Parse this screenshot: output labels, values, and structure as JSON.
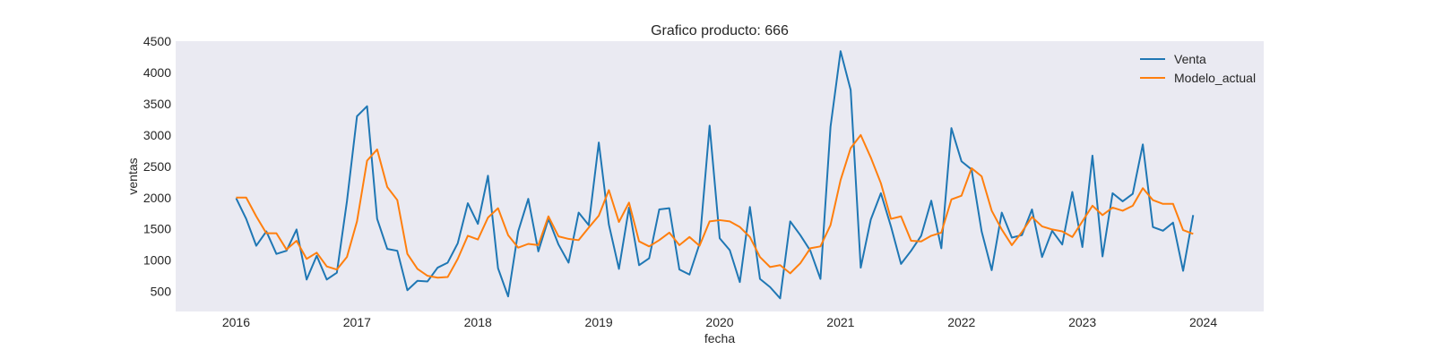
{
  "chart_data": {
    "type": "line",
    "title": "Grafico producto: 666",
    "xlabel": "fecha",
    "ylabel": "ventas",
    "x_start": "2016-01",
    "x_ticks": [
      "2016",
      "2017",
      "2018",
      "2019",
      "2020",
      "2021",
      "2022",
      "2023",
      "2024"
    ],
    "y_ticks": [
      500,
      1000,
      1500,
      2000,
      2500,
      3000,
      3500,
      4000,
      4500
    ],
    "xlim": [
      "2015-07",
      "2024-07"
    ],
    "ylim": [
      180,
      4500
    ],
    "grid": false,
    "legend_position": "top-right",
    "series": [
      {
        "name": "Venta",
        "color": "#1f77b4",
        "values": [
          1990,
          1660,
          1230,
          1460,
          1100,
          1150,
          1490,
          690,
          1070,
          690,
          800,
          1940,
          3300,
          3460,
          1660,
          1180,
          1150,
          520,
          670,
          660,
          880,
          960,
          1270,
          1910,
          1580,
          2350,
          870,
          420,
          1460,
          1980,
          1140,
          1660,
          1250,
          960,
          1760,
          1560,
          2880,
          1570,
          860,
          1840,
          920,
          1030,
          1810,
          1830,
          850,
          770,
          1260,
          3150,
          1350,
          1160,
          650,
          1850,
          700,
          570,
          390,
          1620,
          1400,
          1150,
          700,
          3130,
          4340,
          3720,
          880,
          1650,
          2070,
          1540,
          940,
          1150,
          1390,
          1950,
          1190,
          3110,
          2580,
          2450,
          1460,
          840,
          1760,
          1360,
          1400,
          1810,
          1050,
          1470,
          1250,
          2090,
          1210,
          2670,
          1060,
          2070,
          1940,
          2060,
          2850,
          1530,
          1470,
          1600,
          830,
          1720
        ]
      },
      {
        "name": "Modelo_actual",
        "color": "#ff7f0e",
        "values": [
          2000,
          2000,
          1700,
          1430,
          1430,
          1170,
          1310,
          1020,
          1120,
          900,
          850,
          1050,
          1620,
          2590,
          2770,
          2170,
          1960,
          1100,
          860,
          750,
          720,
          730,
          1020,
          1390,
          1330,
          1680,
          1830,
          1400,
          1200,
          1260,
          1240,
          1700,
          1380,
          1340,
          1320,
          1520,
          1710,
          2120,
          1610,
          1920,
          1300,
          1220,
          1320,
          1440,
          1240,
          1370,
          1230,
          1620,
          1640,
          1620,
          1530,
          1370,
          1050,
          890,
          920,
          790,
          950,
          1190,
          1220,
          1560,
          2280,
          2790,
          3000,
          2640,
          2230,
          1660,
          1700,
          1310,
          1300,
          1390,
          1440,
          1970,
          2030,
          2470,
          2340,
          1790,
          1490,
          1240,
          1450,
          1690,
          1540,
          1490,
          1460,
          1370,
          1620,
          1870,
          1720,
          1840,
          1790,
          1870,
          2150,
          1960,
          1900,
          1900,
          1480,
          1420
        ]
      }
    ]
  }
}
